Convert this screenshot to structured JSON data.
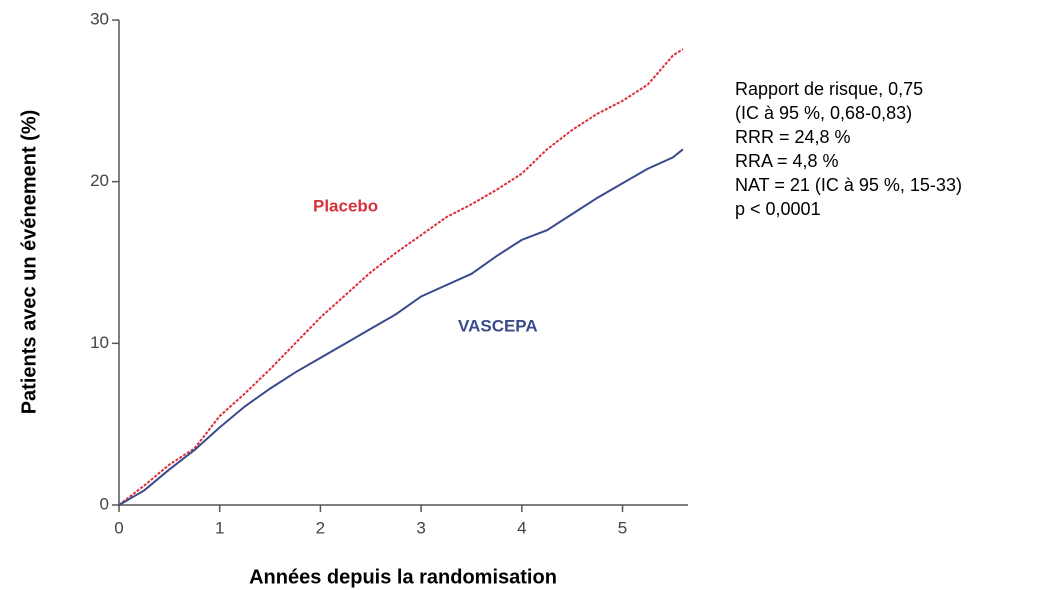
{
  "chart_data": {
    "type": "line",
    "ylabel": "Patients avec un événement (%)",
    "xlabel": "Années depuis la randomisation",
    "x": [
      0,
      0.25,
      0.5,
      0.75,
      1,
      1.25,
      1.5,
      1.75,
      2,
      2.25,
      2.5,
      2.75,
      3,
      3.25,
      3.5,
      3.75,
      4,
      4.25,
      4.5,
      4.75,
      5,
      5.25,
      5.5,
      5.6
    ],
    "series": [
      {
        "name": "Placebo",
        "color": "#d9303c",
        "values": [
          0,
          1.2,
          2.5,
          3.5,
          5.5,
          6.9,
          8.4,
          10,
          11.6,
          13,
          14.4,
          15.6,
          16.7,
          17.8,
          18.6,
          19.5,
          20.5,
          22,
          23.2,
          24.2,
          25,
          26,
          27.8,
          28.2
        ]
      },
      {
        "name": "VASCEPA",
        "color": "#3b4a8c",
        "values": [
          0,
          0.9,
          2.2,
          3.4,
          4.8,
          6.1,
          7.2,
          8.2,
          9.1,
          10,
          10.9,
          11.8,
          12.9,
          13.6,
          14.3,
          15.4,
          16.4,
          17,
          18,
          19,
          19.9,
          20.8,
          21.5,
          22
        ]
      }
    ],
    "xlim": [
      0,
      5.65
    ],
    "xticks": [
      0,
      1,
      2,
      3,
      4,
      5
    ],
    "ylim": [
      0,
      30
    ],
    "yticks": [
      0,
      10,
      20,
      30
    ],
    "grid": false,
    "annotations": [
      "Rapport de risque, 0,75",
      "(IC à 95 %, 0,68-0,83)",
      "RRR = 24,8 %",
      "RRA = 4,8 %",
      "NAT = 21 (IC à 95 %, 15-33)",
      "p < 0,0001"
    ]
  }
}
